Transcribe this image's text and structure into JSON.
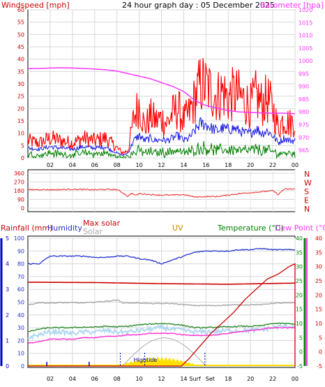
{
  "title": "24 hour graph day : 05 December 2025",
  "colors": {
    "wind": "#ff0000",
    "gust": "#ff0000",
    "avg": "#1a1ae6",
    "lull": "#008000",
    "baro": "#ff33ff",
    "dir": "#ee3333",
    "hum": "#2233cc",
    "maxsolar": "#cc0000",
    "solar": "#aaaaaa",
    "uv": "#c88a00",
    "temp": "#2e8b2e",
    "dew": "#ff2ed0",
    "rain": "#cc0000",
    "rain_axis": "#0000cc",
    "light_temp": "#b0d8f0",
    "tide": "#0000aa",
    "sun": "#ffe000",
    "green_axis": "#008000",
    "red_axis": "#cc0000",
    "magenta_axis": "#ff33ff"
  },
  "chart_data": [
    {
      "type": "line",
      "name": "wind_barometer",
      "labels": {
        "left": "Windspeed [mph]",
        "right": "Barometer [hpa]"
      },
      "ylim": [
        0,
        60
      ],
      "yticks": [
        0,
        5,
        10,
        15,
        20,
        25,
        30,
        35,
        40,
        45,
        50,
        55,
        60
      ],
      "y2lim": [
        962,
        1020
      ],
      "y2ticks": [
        965,
        970,
        975,
        980,
        985,
        990,
        995,
        1000,
        1005,
        1010,
        1015,
        1020
      ],
      "xticks": [
        "02",
        "04",
        "06",
        "08",
        "10",
        "12",
        "14",
        "16",
        "18",
        "20",
        "22",
        "00"
      ],
      "series": [
        {
          "key": "gust",
          "x": [
            0,
            1,
            2,
            3,
            4,
            5,
            6,
            7,
            7.5,
            8,
            8.5,
            9,
            9.5,
            10,
            10.5,
            11,
            11.5,
            12,
            12.5,
            13,
            13.5,
            14,
            14.5,
            15,
            15.5,
            16,
            16.5,
            17,
            17.5,
            18,
            18.5,
            19,
            19.5,
            20,
            20.5,
            21,
            21.5,
            22,
            22.5,
            23,
            23.5,
            24
          ],
          "values": [
            7,
            6,
            8,
            7,
            6,
            8,
            7,
            8,
            6,
            4,
            2,
            3,
            16,
            22,
            12,
            17,
            15,
            16,
            14,
            18,
            20,
            15,
            18,
            24,
            30,
            29,
            27,
            25,
            27,
            24,
            26,
            25,
            23,
            21,
            25,
            22,
            24,
            20,
            12,
            16,
            14,
            15
          ]
        },
        {
          "key": "avg",
          "x": [
            0,
            1,
            2,
            3,
            4,
            5,
            6,
            7,
            7.5,
            8,
            8.5,
            9,
            9.5,
            10,
            10.5,
            11,
            11.5,
            12,
            12.5,
            13,
            13.5,
            14,
            14.5,
            15,
            15.5,
            16,
            16.5,
            17,
            17.5,
            18,
            18.5,
            19,
            19.5,
            20,
            20.5,
            21,
            21.5,
            22,
            22.5,
            23,
            23.5,
            24
          ],
          "values": [
            4,
            3.5,
            4.5,
            4,
            3.5,
            4.5,
            4,
            4.5,
            3,
            2,
            1,
            2,
            7,
            9,
            7,
            8,
            7,
            7.5,
            7,
            8,
            9,
            7,
            8,
            11,
            14,
            13.5,
            12,
            11,
            12,
            11.5,
            12,
            11,
            10,
            10,
            12,
            10,
            11,
            9,
            6,
            8,
            7,
            7
          ]
        },
        {
          "key": "lull",
          "x": [
            0,
            1,
            2,
            3,
            4,
            5,
            6,
            7,
            7.5,
            8,
            8.5,
            9,
            9.5,
            10,
            10.5,
            11,
            11.5,
            12,
            12.5,
            13,
            13.5,
            14,
            14.5,
            15,
            15.5,
            16,
            16.5,
            17,
            17.5,
            18,
            18.5,
            19,
            19.5,
            20,
            20.5,
            21,
            21.5,
            22,
            22.5,
            23,
            23.5,
            24
          ],
          "values": [
            1.5,
            1,
            2,
            1.5,
            1,
            2,
            1.5,
            2,
            1,
            0.5,
            0,
            0.5,
            2,
            3,
            2,
            2.5,
            2,
            2.5,
            2,
            3,
            3,
            2,
            2.5,
            3.5,
            4,
            4,
            3.5,
            3,
            3.5,
            3,
            3.5,
            3,
            3,
            3,
            3.5,
            3,
            3,
            2.5,
            1.5,
            2,
            2,
            2
          ]
        },
        {
          "key": "baro",
          "x": [
            0,
            1,
            2,
            3,
            4,
            5,
            6,
            7,
            8,
            9,
            10,
            11,
            12,
            13,
            14,
            15,
            16,
            17,
            18,
            19,
            20,
            21,
            22,
            23,
            24
          ],
          "values": [
            997,
            997,
            997.2,
            997.3,
            997.2,
            997.0,
            996.8,
            996.5,
            996,
            995,
            994,
            993,
            991.5,
            990,
            988,
            984.5,
            982.5,
            981.5,
            980.5,
            980,
            979.8,
            979.6,
            979.5,
            979.5,
            979.3
          ]
        }
      ]
    },
    {
      "type": "line",
      "name": "wind_direction",
      "ylim": [
        0,
        360
      ],
      "yticks": [
        0,
        90,
        180,
        270,
        360
      ],
      "ytick_labels": [
        "0",
        "90",
        "180",
        "270",
        "360"
      ],
      "dir_labels": [
        "N",
        "W",
        "S",
        "E",
        "N"
      ],
      "series": [
        {
          "key": "dir",
          "x": [
            0,
            1,
            2,
            3,
            4,
            5,
            6,
            7,
            8,
            8.5,
            9,
            9.3,
            9.7,
            10,
            11,
            12,
            13,
            14,
            15,
            16,
            17,
            18,
            19,
            20,
            21,
            22,
            22.5,
            23,
            24
          ],
          "values": [
            190,
            193,
            190,
            192,
            195,
            193,
            190,
            193,
            192,
            160,
            120,
            155,
            130,
            150,
            140,
            135,
            135,
            140,
            115,
            120,
            120,
            135,
            150,
            160,
            170,
            180,
            140,
            195,
            198
          ]
        }
      ]
    },
    {
      "type": "line",
      "name": "weather_multi",
      "legend": [
        "Rainfall (mm)",
        "Humidity",
        "Max solar",
        "Solar",
        "UV",
        "Temperature (°C)",
        "Dew Point (°C)"
      ],
      "humidity_ylim": [
        0,
        100
      ],
      "humidity_yticks": [
        0,
        10,
        20,
        30,
        40,
        50,
        60,
        70,
        80,
        90,
        100
      ],
      "rain_ylim": [
        0,
        5
      ],
      "rain_yticks": [
        0,
        1,
        2,
        3,
        4,
        5
      ],
      "temp_ylim": [
        -5,
        40
      ],
      "temp_yticks": [
        -5,
        0,
        5,
        10,
        15,
        20,
        25,
        30,
        35,
        40
      ],
      "dew_yticks": [
        -5,
        0,
        5,
        10,
        15,
        20,
        25,
        30,
        35,
        40
      ],
      "markers": {
        "hightide": "Hightide",
        "sunset": "Set",
        "surf": "Surf"
      },
      "series": [
        {
          "key": "hum",
          "x": [
            0,
            1,
            2,
            3,
            4,
            5,
            6,
            7,
            8,
            9,
            10,
            11,
            12,
            13,
            14,
            15,
            16,
            17,
            18,
            19,
            20,
            21,
            22,
            23,
            24
          ],
          "values": [
            80,
            80,
            86,
            86,
            86,
            86,
            85,
            85,
            86,
            86,
            84,
            83,
            80,
            83,
            86,
            89,
            90,
            90,
            90,
            91,
            91,
            92,
            91,
            91,
            91
          ]
        },
        {
          "key": "maxsolar",
          "x": [
            0,
            6,
            12,
            18,
            24
          ],
          "values": [
            24.5,
            24.4,
            24.0,
            23.8,
            24.2
          ],
          "unit": "temp"
        },
        {
          "key": "solar",
          "x": [
            0,
            1,
            2,
            3,
            4,
            5,
            6,
            7,
            7.5,
            8,
            8.5,
            9,
            10,
            11,
            12,
            13,
            14,
            15,
            16,
            17,
            18,
            19,
            20,
            21,
            22,
            23,
            24
          ],
          "values": [
            16.5,
            17.3,
            17.2,
            17.3,
            17.3,
            17.2,
            17.5,
            17.8,
            18.0,
            18.3,
            17.3,
            17.2,
            17.2,
            17.0,
            17.0,
            17.0,
            16.6,
            16.3,
            16.3,
            16.3,
            16.5,
            16.5,
            16.6,
            16.6,
            17.1,
            17.2,
            17.2
          ],
          "unit": "temp"
        },
        {
          "key": "temp",
          "x": [
            0,
            1,
            2,
            3,
            4,
            5,
            6,
            7,
            8,
            9,
            10,
            11,
            12,
            13,
            14,
            15,
            16,
            17,
            18,
            19,
            20,
            21,
            22,
            23,
            24
          ],
          "values": [
            7,
            8,
            8.5,
            8.5,
            8.5,
            8.7,
            8.7,
            9,
            8.8,
            9,
            9.5,
            9.8,
            10,
            9.8,
            9.3,
            8.5,
            8.5,
            8.7,
            8.8,
            9,
            9,
            9.2,
            10,
            10,
            9.8
          ],
          "unit": "temp"
        },
        {
          "key": "light_temp",
          "x": [
            0,
            1,
            2,
            3,
            4,
            5,
            6,
            7,
            8,
            9,
            10,
            11,
            12,
            13,
            14,
            15,
            16,
            17,
            18,
            19,
            20,
            21,
            22,
            23,
            24
          ],
          "values": [
            5,
            6,
            7,
            7,
            6.5,
            7,
            7,
            7.5,
            7,
            7,
            7.5,
            8,
            8.5,
            8,
            7.5,
            7,
            7,
            7.2,
            7.5,
            7.5,
            7.5,
            7.8,
            8.5,
            9,
            9
          ],
          "unit": "temp"
        },
        {
          "key": "dew",
          "x": [
            0,
            1,
            2,
            3,
            4,
            5,
            6,
            7,
            8,
            9,
            10,
            11,
            12,
            13,
            14,
            15,
            16,
            17,
            18,
            19,
            20,
            21,
            22,
            23,
            24
          ],
          "values": [
            3,
            3.5,
            4.5,
            4.5,
            4.5,
            5,
            5,
            5.5,
            5.5,
            6,
            6,
            6.5,
            6.5,
            6.5,
            6,
            5.8,
            5.8,
            6,
            6.5,
            7,
            7.5,
            8,
            8.5,
            8.5,
            8.5
          ],
          "unit": "temp"
        },
        {
          "key": "rain",
          "x": [
            0,
            13.8,
            14.5,
            15.5,
            16.5,
            17.5,
            18.5,
            19.5,
            20.5,
            21.5,
            22.5,
            23.5,
            24,
            24,
            24.001
          ],
          "values": [
            0,
            0,
            0.3,
            0.8,
            1.3,
            1.7,
            2.1,
            2.6,
            3.0,
            3.4,
            3.6,
            3.9,
            4.0,
            0,
            0
          ],
          "unit": "rain"
        },
        {
          "key": "uvline",
          "x": [
            0,
            8.5,
            9,
            10,
            11,
            12,
            13,
            14,
            15,
            16,
            24
          ],
          "values": [
            0,
            0,
            0,
            0.1,
            0.1,
            0.15,
            0.1,
            0.05,
            0,
            0,
            0
          ],
          "unit": "rain"
        }
      ]
    }
  ]
}
